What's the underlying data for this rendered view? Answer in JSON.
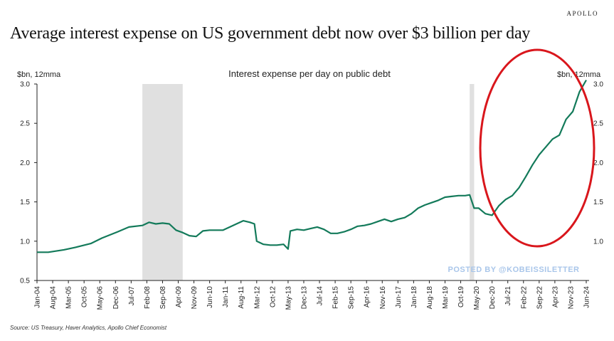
{
  "brand": "APOLLO",
  "title": "Average interest expense on US government debt now over $3 billion per day",
  "source": "Source: US Treasury, Haver Analytics, Apollo Chief Economist",
  "watermark": "POSTED BY @KOBEISSILETTER",
  "colors": {
    "line": "#137a5a",
    "recession": "#e0e0e0",
    "circle": "#d9161c",
    "axis": "#222222"
  },
  "chart_data": {
    "type": "line",
    "title": "Interest expense per day on public debt",
    "ylabel_left": "$bn, 12mma",
    "ylabel_right": "$bn, 12mma",
    "ylim": [
      0.5,
      3.0
    ],
    "yticks": [
      "0.5",
      "1.0",
      "1.5",
      "2.0",
      "2.5",
      "3.0"
    ],
    "yticks_right": [
      "1.0",
      "1.5",
      "2.0",
      "2.5",
      "3.0"
    ],
    "xlim": [
      "2004-01",
      "2024-06"
    ],
    "xticks": [
      "Jan-04",
      "Aug-04",
      "Mar-05",
      "Oct-05",
      "May-06",
      "Dec-06",
      "Jul-07",
      "Feb-08",
      "Sep-08",
      "Apr-09",
      "Nov-09",
      "Jun-10",
      "Jan-11",
      "Aug-11",
      "Mar-12",
      "Oct-12",
      "May-13",
      "Dec-13",
      "Jul-14",
      "Feb-15",
      "Sep-15",
      "Apr-16",
      "Nov-16",
      "Jun-17",
      "Jan-18",
      "Aug-18",
      "Mar-19",
      "Oct-19",
      "May-20",
      "Dec-20",
      "Jul-21",
      "Feb-22",
      "Sep-22",
      "Apr-23",
      "Nov-23",
      "Jun-24"
    ],
    "recessions": [
      [
        "2007-12",
        "2009-06"
      ],
      [
        "2020-02",
        "2020-04"
      ]
    ],
    "grid": false,
    "legend": "none",
    "annotation": "red ellipse highlighting 2021–2024 surge",
    "series": [
      {
        "x": [
          "2004-01",
          "2004-06",
          "2005-01",
          "2005-06",
          "2006-01",
          "2006-06",
          "2007-01",
          "2007-06",
          "2007-12",
          "2008-03",
          "2008-06",
          "2008-09",
          "2008-12",
          "2009-03",
          "2009-06",
          "2009-09",
          "2009-12",
          "2010-03",
          "2010-06",
          "2010-12",
          "2011-06",
          "2011-09",
          "2011-12",
          "2012-02",
          "2012-03",
          "2012-06",
          "2012-09",
          "2012-12",
          "2013-03",
          "2013-05",
          "2013-06",
          "2013-09",
          "2013-12",
          "2014-03",
          "2014-06",
          "2014-09",
          "2014-12",
          "2015-03",
          "2015-06",
          "2015-09",
          "2015-12",
          "2016-03",
          "2016-06",
          "2016-09",
          "2016-12",
          "2017-03",
          "2017-06",
          "2017-09",
          "2017-12",
          "2018-03",
          "2018-06",
          "2018-09",
          "2018-12",
          "2019-03",
          "2019-06",
          "2019-09",
          "2019-12",
          "2020-02",
          "2020-04",
          "2020-06",
          "2020-09",
          "2020-12",
          "2021-03",
          "2021-06",
          "2021-09",
          "2021-12",
          "2022-03",
          "2022-06",
          "2022-09",
          "2022-12",
          "2023-03",
          "2023-06",
          "2023-09",
          "2023-12",
          "2024-03",
          "2024-06"
        ],
        "values": [
          0.86,
          0.86,
          0.89,
          0.92,
          0.97,
          1.04,
          1.12,
          1.18,
          1.2,
          1.24,
          1.22,
          1.23,
          1.22,
          1.14,
          1.11,
          1.07,
          1.06,
          1.13,
          1.14,
          1.14,
          1.22,
          1.26,
          1.24,
          1.22,
          1.0,
          0.96,
          0.95,
          0.95,
          0.96,
          0.9,
          1.13,
          1.15,
          1.14,
          1.16,
          1.18,
          1.15,
          1.1,
          1.1,
          1.12,
          1.15,
          1.19,
          1.2,
          1.22,
          1.25,
          1.28,
          1.25,
          1.28,
          1.3,
          1.35,
          1.42,
          1.46,
          1.49,
          1.52,
          1.56,
          1.57,
          1.58,
          1.58,
          1.59,
          1.42,
          1.42,
          1.35,
          1.33,
          1.45,
          1.53,
          1.58,
          1.68,
          1.82,
          1.97,
          2.1,
          2.2,
          2.3,
          2.35,
          2.55,
          2.65,
          2.9,
          3.05
        ]
      }
    ]
  }
}
